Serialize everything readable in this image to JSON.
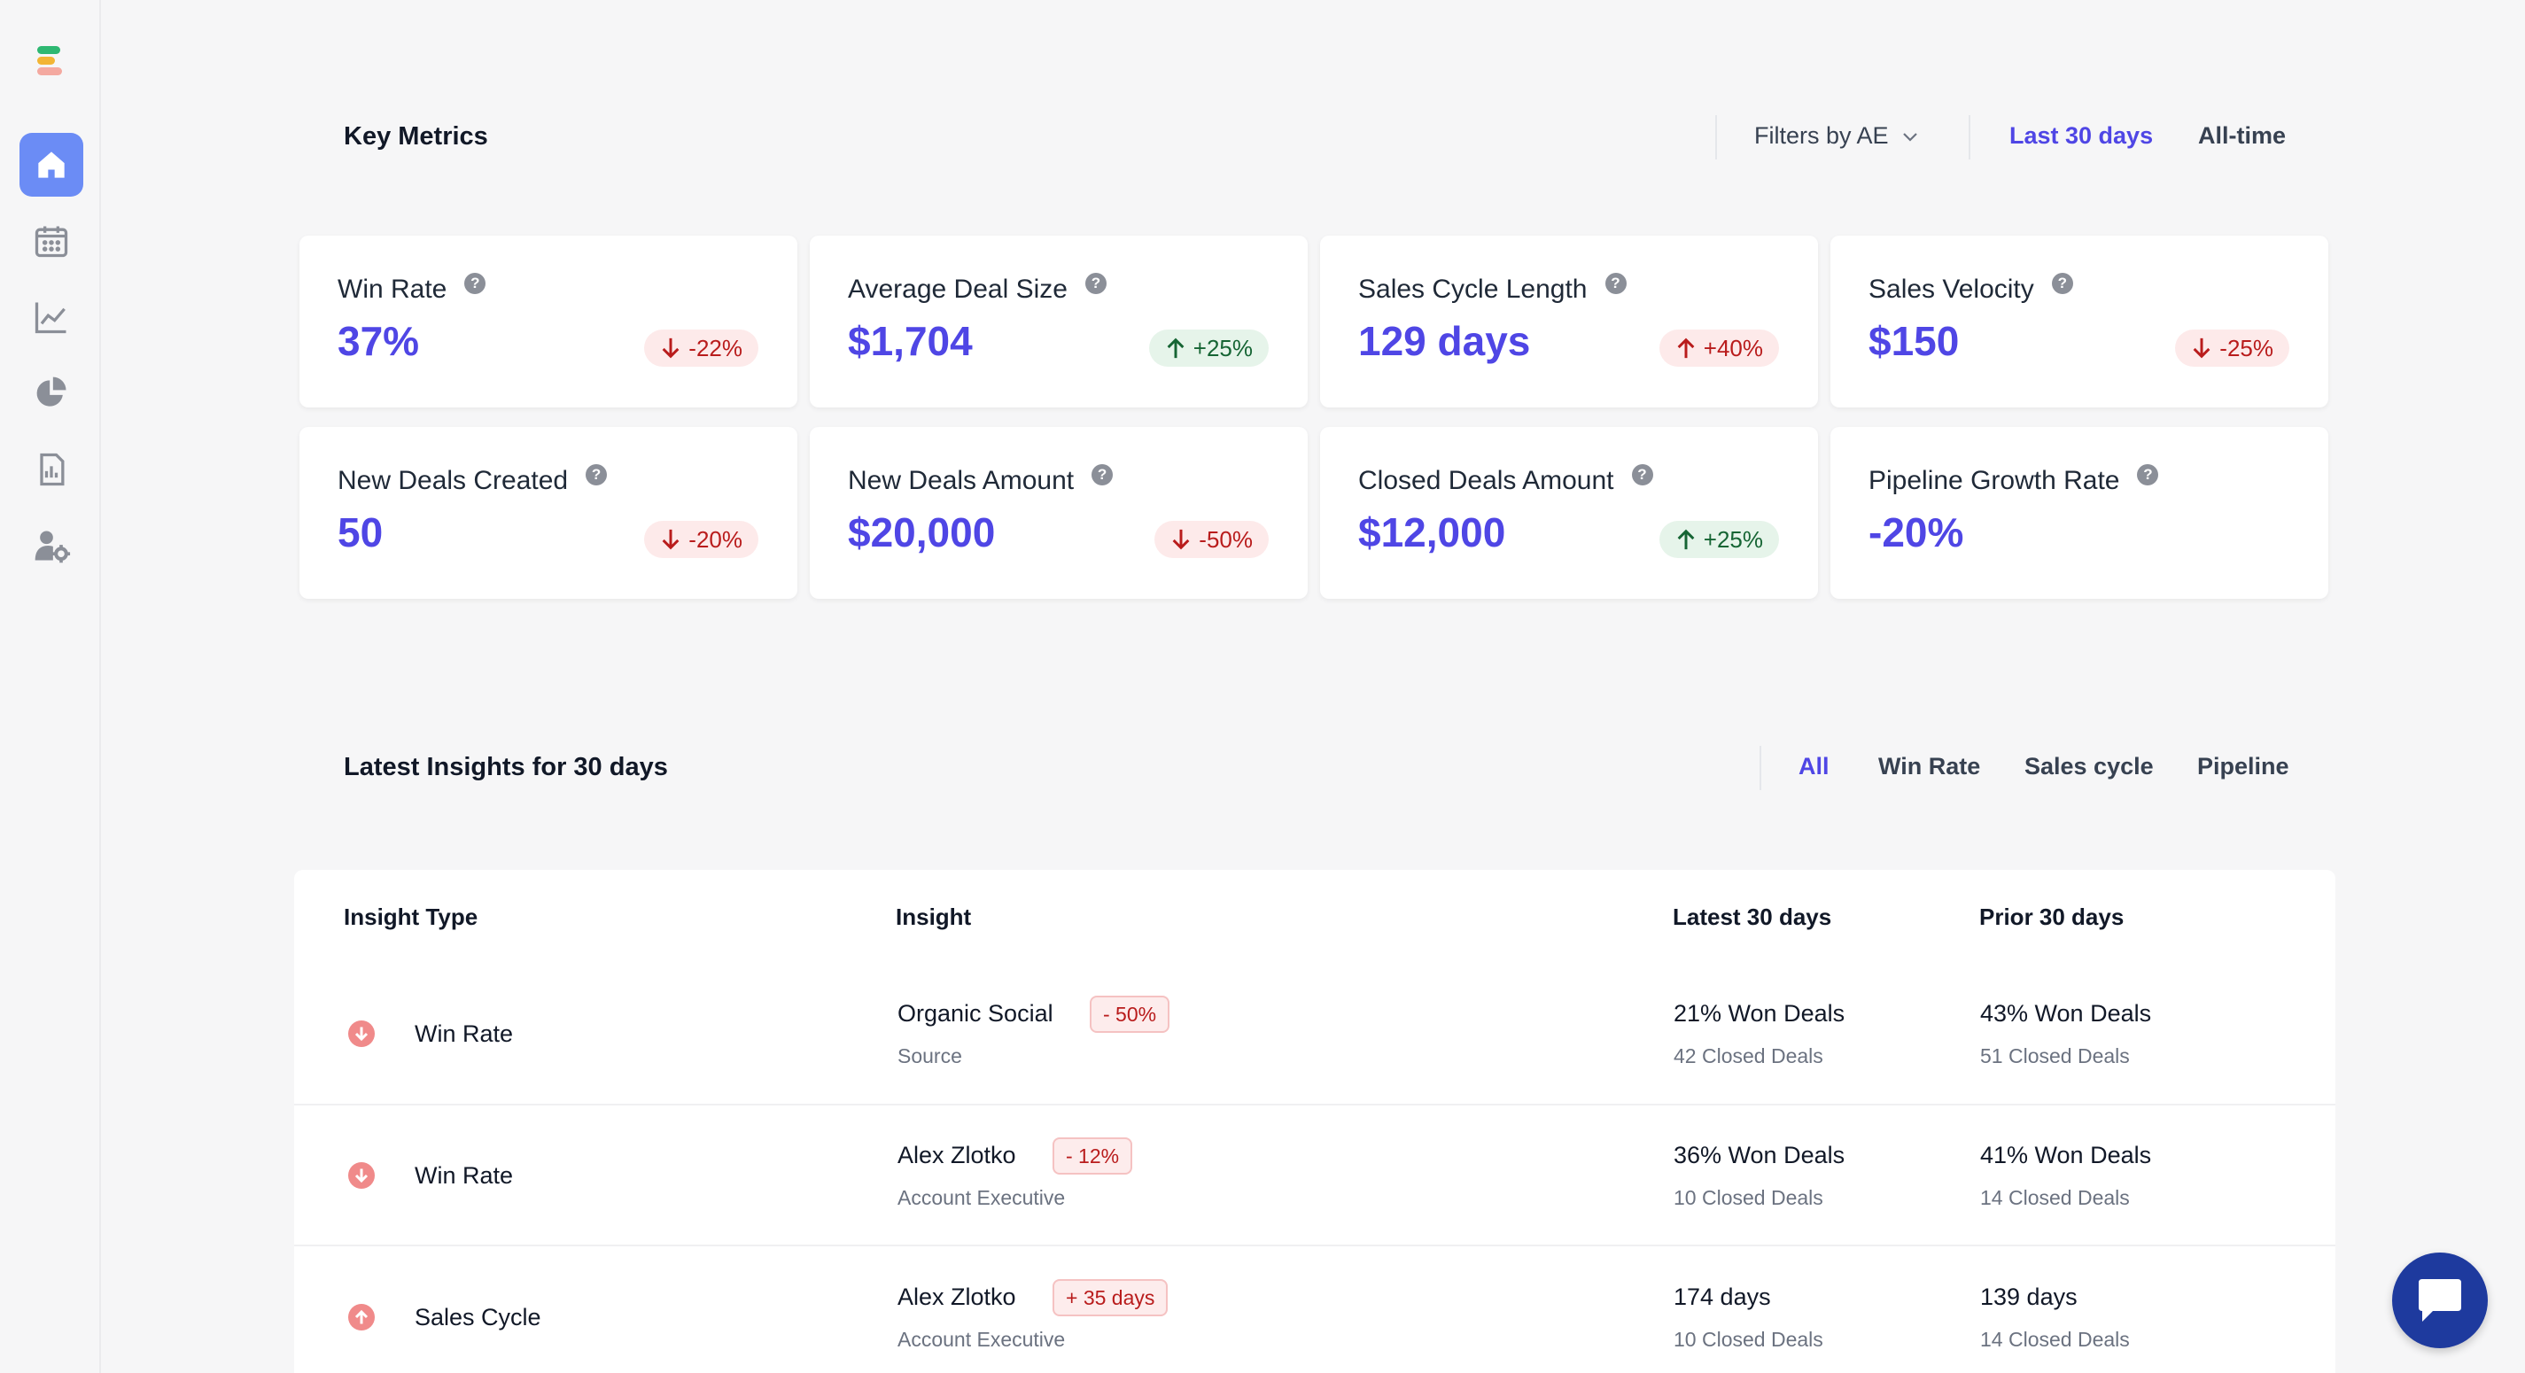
{
  "key_metrics": {
    "title": "Key Metrics",
    "filter_label": "Filters by AE",
    "range_active": "Last 30 days",
    "range_other": "All-time"
  },
  "metrics": [
    {
      "name": "Win Rate",
      "value": "37%",
      "delta": "-22%",
      "direction": "down"
    },
    {
      "name": "Average Deal Size",
      "value": "$1,704",
      "delta": "+25%",
      "direction": "up"
    },
    {
      "name": "Sales Cycle Length",
      "value": "129 days",
      "delta": "+40%",
      "direction": "down"
    },
    {
      "name": "Sales Velocity",
      "value": "$150",
      "delta": "-25%",
      "direction": "down"
    },
    {
      "name": "New Deals Created",
      "value": "50",
      "delta": "-20%",
      "direction": "down"
    },
    {
      "name": "New Deals Amount",
      "value": "$20,000",
      "delta": "-50%",
      "direction": "down"
    },
    {
      "name": "Closed Deals Amount",
      "value": "$12,000",
      "delta": "+25%",
      "direction": "up"
    },
    {
      "name": "Pipeline Growth Rate",
      "value": "-20%",
      "delta": null,
      "direction": null
    }
  ],
  "insights": {
    "title": "Latest Insights for 30 days",
    "tabs": [
      "All",
      "Win Rate",
      "Sales cycle",
      "Pipeline"
    ],
    "columns": [
      "Insight Type",
      "Insight",
      "Latest 30 days",
      "Prior 30 days"
    ],
    "rows": [
      {
        "type": "Win Rate",
        "trend": "down",
        "insight": "Organic Social",
        "insight_sub": "Source",
        "tag": "- 50%",
        "latest": "21% Won Deals",
        "latest_sub": "42 Closed Deals",
        "prior": "43% Won Deals",
        "prior_sub": "51 Closed Deals"
      },
      {
        "type": "Win Rate",
        "trend": "down",
        "insight": "Alex Zlotko",
        "insight_sub": "Account Executive",
        "tag": "- 12%",
        "latest": "36% Won Deals",
        "latest_sub": "10 Closed Deals",
        "prior": "41% Won Deals",
        "prior_sub": "14 Closed Deals"
      },
      {
        "type": "Sales Cycle",
        "trend": "up",
        "insight": "Alex Zlotko",
        "insight_sub": "Account Executive",
        "tag": "+ 35 days",
        "latest": "174 days",
        "latest_sub": "10 Closed Deals",
        "prior": "139 days",
        "prior_sub": "14 Closed Deals"
      }
    ]
  },
  "help_glyph": "?",
  "sidebar": {
    "icons": [
      "home-icon",
      "calendar-icon",
      "chart-line-icon",
      "pie-chart-icon",
      "report-icon",
      "user-settings-icon"
    ]
  },
  "colors": {
    "accent": "#4f46e5",
    "nav_active": "#6b8cf5",
    "negative": "#b91c1c",
    "positive": "#166534",
    "chat_button": "#1e3a9e"
  }
}
